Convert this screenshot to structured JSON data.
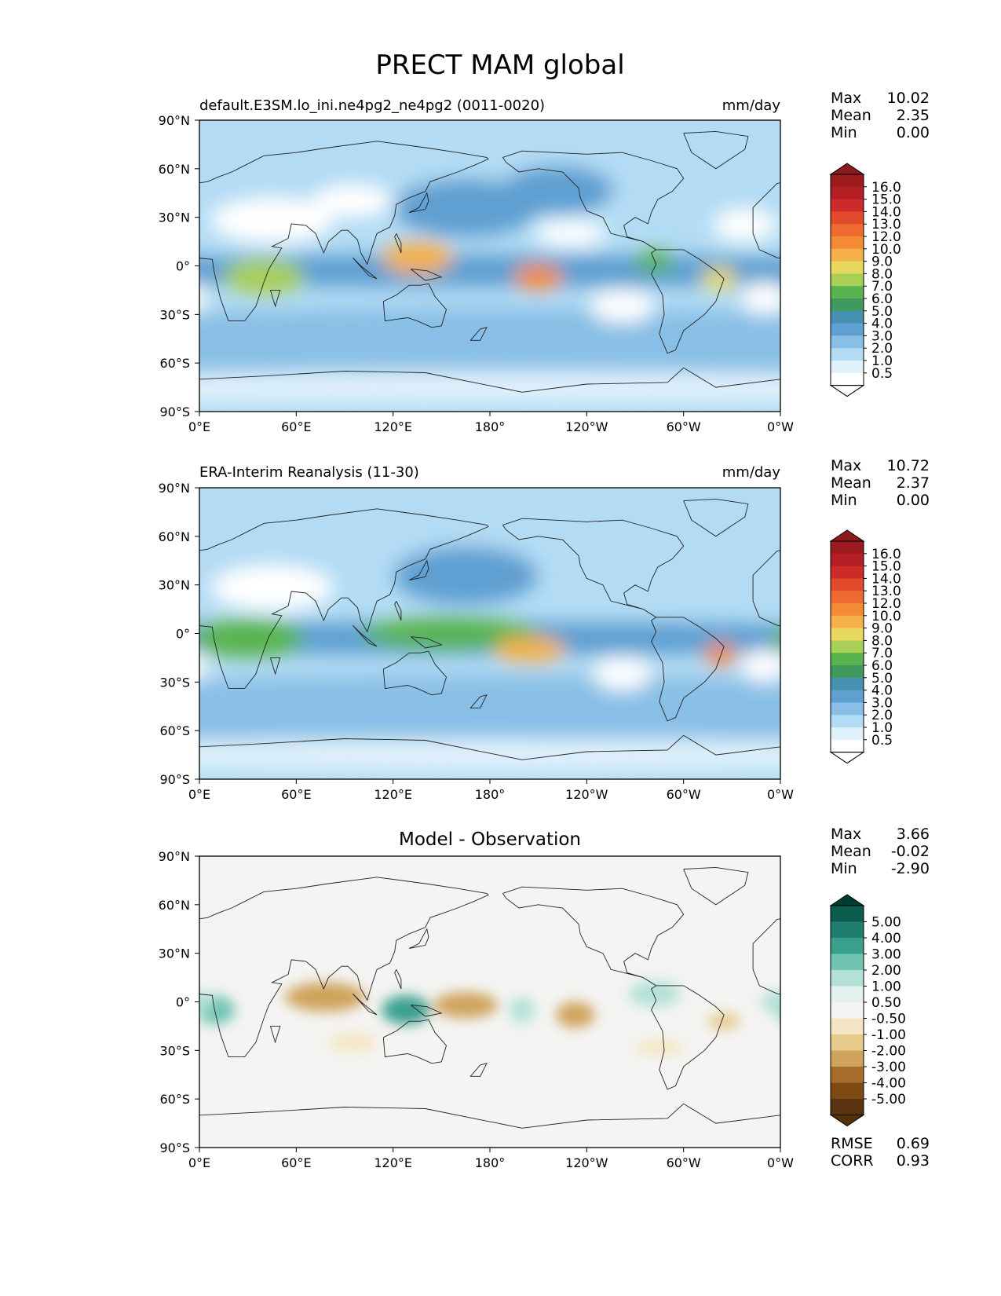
{
  "figure": {
    "title": "PRECT MAM global",
    "x_ticks": [
      "0°E",
      "60°E",
      "120°E",
      "180°",
      "120°W",
      "60°W",
      "0°W"
    ],
    "y_ticks": [
      "90°N",
      "60°N",
      "30°N",
      "0°",
      "30°S",
      "60°S",
      "90°S"
    ]
  },
  "panels": [
    {
      "id": "test",
      "left_title": "default.E3SM.lo_ini.ne4pg2_ne4pg2 (0011-0020)",
      "center_title": "",
      "right_title": "mm/day",
      "stats": [
        {
          "label": "Max",
          "value": "10.02"
        },
        {
          "label": "Mean",
          "value": "2.35"
        },
        {
          "label": "Min",
          "value": "0.00"
        }
      ],
      "colorbar": {
        "labels": [
          "16.0",
          "15.0",
          "14.0",
          "13.0",
          "12.0",
          "10.0",
          "9.0",
          "8.0",
          "7.0",
          "6.0",
          "5.0",
          "4.0",
          "3.0",
          "2.0",
          "1.0",
          "0.5"
        ],
        "colors": [
          "#9b1b1e",
          "#b31f24",
          "#cf2a2a",
          "#e24a2c",
          "#ee6a30",
          "#f48a36",
          "#f6b04b",
          "#e9d85f",
          "#a8cf56",
          "#59b34e",
          "#3e9a5c",
          "#4791b0",
          "#5f9fd1",
          "#89bfe6",
          "#b3dcf4",
          "#dff1fb",
          "#ffffff"
        ],
        "extend_top": "#8c1a1a",
        "extend_bottom": "#ffffff"
      }
    },
    {
      "id": "reference",
      "left_title": "ERA-Interim Reanalysis (11-30)",
      "center_title": "",
      "right_title": "mm/day",
      "stats": [
        {
          "label": "Max",
          "value": "10.72"
        },
        {
          "label": "Mean",
          "value": "2.37"
        },
        {
          "label": "Min",
          "value": "0.00"
        }
      ],
      "colorbar": {
        "labels": [
          "16.0",
          "15.0",
          "14.0",
          "13.0",
          "12.0",
          "10.0",
          "9.0",
          "8.0",
          "7.0",
          "6.0",
          "5.0",
          "4.0",
          "3.0",
          "2.0",
          "1.0",
          "0.5"
        ],
        "colors": [
          "#9b1b1e",
          "#b31f24",
          "#cf2a2a",
          "#e24a2c",
          "#ee6a30",
          "#f48a36",
          "#f6b04b",
          "#e9d85f",
          "#a8cf56",
          "#59b34e",
          "#3e9a5c",
          "#4791b0",
          "#5f9fd1",
          "#89bfe6",
          "#b3dcf4",
          "#dff1fb",
          "#ffffff"
        ],
        "extend_top": "#8c1a1a",
        "extend_bottom": "#ffffff"
      }
    },
    {
      "id": "difference",
      "left_title": "",
      "center_title": "Model - Observation",
      "right_title": "",
      "stats": [
        {
          "label": "Max",
          "value": "3.66"
        },
        {
          "label": "Mean",
          "value": "-0.02"
        },
        {
          "label": "Min",
          "value": "-2.90"
        }
      ],
      "colorbar": {
        "labels": [
          "5.00",
          "4.00",
          "3.00",
          "2.00",
          "1.00",
          "0.50",
          "-0.50",
          "-1.00",
          "-2.00",
          "-3.00",
          "-4.00",
          "-5.00"
        ],
        "colors": [
          "#0a5c4f",
          "#1e7f70",
          "#3aa08e",
          "#72c4b2",
          "#b3e1d6",
          "#e3f2ee",
          "#f4f4f2",
          "#f5e6c3",
          "#e7c98c",
          "#cfa35c",
          "#a86c2a",
          "#7e4a14",
          "#5a3410"
        ],
        "extend_top": "#003c30",
        "extend_bottom": "#543005"
      },
      "metrics": [
        {
          "label": "RMSE",
          "value": "0.69"
        },
        {
          "label": "CORR",
          "value": "0.93"
        }
      ]
    }
  ],
  "chart_data": [
    {
      "type": "heatmap",
      "title": "default.E3SM.lo_ini.ne4pg2_ne4pg2 (0011-0020)",
      "units": "mm/day",
      "xlabel": "",
      "ylabel": "",
      "xlim": [
        0,
        360
      ],
      "ylim": [
        -90,
        90
      ],
      "levels": [
        0.5,
        1,
        2,
        3,
        4,
        5,
        6,
        7,
        8,
        9,
        10,
        12,
        13,
        14,
        15,
        16
      ],
      "background_level": 1.6,
      "regions": [
        {
          "lon": 0,
          "lat": 52,
          "rx": 360,
          "ry": 16,
          "value": 1.2
        },
        {
          "lon": 180,
          "lat": -48,
          "rx": 360,
          "ry": 22,
          "value": 2.3
        },
        {
          "lon": 180,
          "lat": -75,
          "rx": 360,
          "ry": 10,
          "value": 0.8
        },
        {
          "lon": 165,
          "lat": 36,
          "rx": 45,
          "ry": 18,
          "value": 3.1
        },
        {
          "lon": 222,
          "lat": 47,
          "rx": 35,
          "ry": 15,
          "value": 3.1
        },
        {
          "lon": 180,
          "lat": -3,
          "rx": 360,
          "ry": 10,
          "value": 3.3
        },
        {
          "lon": 45,
          "lat": 28,
          "rx": 38,
          "ry": 14,
          "value": 0.2
        },
        {
          "lon": 95,
          "lat": 40,
          "rx": 25,
          "ry": 10,
          "value": 0.3
        },
        {
          "lon": 230,
          "lat": 20,
          "rx": 22,
          "ry": 8,
          "value": 0.2
        },
        {
          "lon": 262,
          "lat": -25,
          "rx": 20,
          "ry": 10,
          "value": 0.1
        },
        {
          "lon": 350,
          "lat": -20,
          "rx": 14,
          "ry": 10,
          "value": 0.3
        },
        {
          "lon": 338,
          "lat": 25,
          "rx": 20,
          "ry": 10,
          "value": 0.4
        },
        {
          "lon": 40,
          "lat": -7,
          "rx": 25,
          "ry": 11,
          "value": 7.0
        },
        {
          "lon": 135,
          "lat": 5,
          "rx": 22,
          "ry": 10,
          "value": 9.2
        },
        {
          "lon": 210,
          "lat": -7,
          "rx": 15,
          "ry": 8,
          "value": 10.0
        },
        {
          "lon": 282,
          "lat": 3,
          "rx": 12,
          "ry": 7,
          "value": 6.5
        },
        {
          "lon": 322,
          "lat": -8,
          "rx": 11,
          "ry": 7,
          "value": 8.5
        }
      ],
      "series": [
        {
          "name": "Max",
          "values": [
            10.02
          ]
        },
        {
          "name": "Mean",
          "values": [
            2.35
          ]
        },
        {
          "name": "Min",
          "values": [
            0.0
          ]
        }
      ]
    },
    {
      "type": "heatmap",
      "title": "ERA-Interim Reanalysis (11-30)",
      "units": "mm/day",
      "xlabel": "",
      "ylabel": "",
      "xlim": [
        0,
        360
      ],
      "ylim": [
        -90,
        90
      ],
      "levels": [
        0.5,
        1,
        2,
        3,
        4,
        5,
        6,
        7,
        8,
        9,
        10,
        12,
        13,
        14,
        15,
        16
      ],
      "background_level": 1.6,
      "regions": [
        {
          "lon": 0,
          "lat": 52,
          "rx": 360,
          "ry": 16,
          "value": 1.2
        },
        {
          "lon": 180,
          "lat": -48,
          "rx": 360,
          "ry": 22,
          "value": 2.3
        },
        {
          "lon": 180,
          "lat": -75,
          "rx": 360,
          "ry": 10,
          "value": 0.8
        },
        {
          "lon": 165,
          "lat": 36,
          "rx": 45,
          "ry": 18,
          "value": 3.1
        },
        {
          "lon": 180,
          "lat": -3,
          "rx": 360,
          "ry": 10,
          "value": 3.3
        },
        {
          "lon": 45,
          "lat": 28,
          "rx": 38,
          "ry": 14,
          "value": 0.2
        },
        {
          "lon": 262,
          "lat": -25,
          "rx": 18,
          "ry": 10,
          "value": 0.1
        },
        {
          "lon": 350,
          "lat": -20,
          "rx": 14,
          "ry": 10,
          "value": 0.3
        },
        {
          "lon": 30,
          "lat": -3,
          "rx": 35,
          "ry": 12,
          "value": 6.0
        },
        {
          "lon": 155,
          "lat": 0,
          "rx": 55,
          "ry": 10,
          "value": 6.5
        },
        {
          "lon": 205,
          "lat": -10,
          "rx": 22,
          "ry": 8,
          "value": 9.5
        },
        {
          "lon": 323,
          "lat": -13,
          "rx": 10,
          "ry": 7,
          "value": 10.0
        }
      ],
      "series": [
        {
          "name": "Max",
          "values": [
            10.72
          ]
        },
        {
          "name": "Mean",
          "values": [
            2.37
          ]
        },
        {
          "name": "Min",
          "values": [
            0.0
          ]
        }
      ]
    },
    {
      "type": "heatmap",
      "title": "Model - Observation",
      "units": "",
      "xlabel": "",
      "ylabel": "",
      "xlim": [
        0,
        360
      ],
      "ylim": [
        -90,
        90
      ],
      "levels": [
        -5,
        -4,
        -3,
        -2,
        -1,
        -0.5,
        0.5,
        1,
        2,
        3,
        4,
        5
      ],
      "background_level": 0,
      "regions": [
        {
          "lon": 10,
          "lat": -5,
          "rx": 12,
          "ry": 9,
          "value": 2.2
        },
        {
          "lon": 78,
          "lat": 3,
          "rx": 25,
          "ry": 9,
          "value": -2.2
        },
        {
          "lon": 128,
          "lat": -5,
          "rx": 15,
          "ry": 9,
          "value": 3.3
        },
        {
          "lon": 165,
          "lat": -2,
          "rx": 20,
          "ry": 8,
          "value": -2.6
        },
        {
          "lon": 200,
          "lat": -5,
          "rx": 8,
          "ry": 8,
          "value": 1.4
        },
        {
          "lon": 233,
          "lat": -8,
          "rx": 12,
          "ry": 8,
          "value": -2.6
        },
        {
          "lon": 282,
          "lat": 5,
          "rx": 16,
          "ry": 8,
          "value": 1.6
        },
        {
          "lon": 325,
          "lat": -12,
          "rx": 10,
          "ry": 5,
          "value": -1.2
        },
        {
          "lon": 358,
          "lat": 0,
          "rx": 10,
          "ry": 7,
          "value": 1.5
        },
        {
          "lon": 95,
          "lat": -25,
          "rx": 15,
          "ry": 6,
          "value": -0.6
        },
        {
          "lon": 285,
          "lat": -28,
          "rx": 15,
          "ry": 5,
          "value": -0.6
        }
      ],
      "series": [
        {
          "name": "Max",
          "values": [
            3.66
          ]
        },
        {
          "name": "Mean",
          "values": [
            -0.02
          ]
        },
        {
          "name": "Min",
          "values": [
            -2.9
          ]
        },
        {
          "name": "RMSE",
          "values": [
            0.69
          ]
        },
        {
          "name": "CORR",
          "values": [
            0.93
          ]
        }
      ]
    }
  ]
}
